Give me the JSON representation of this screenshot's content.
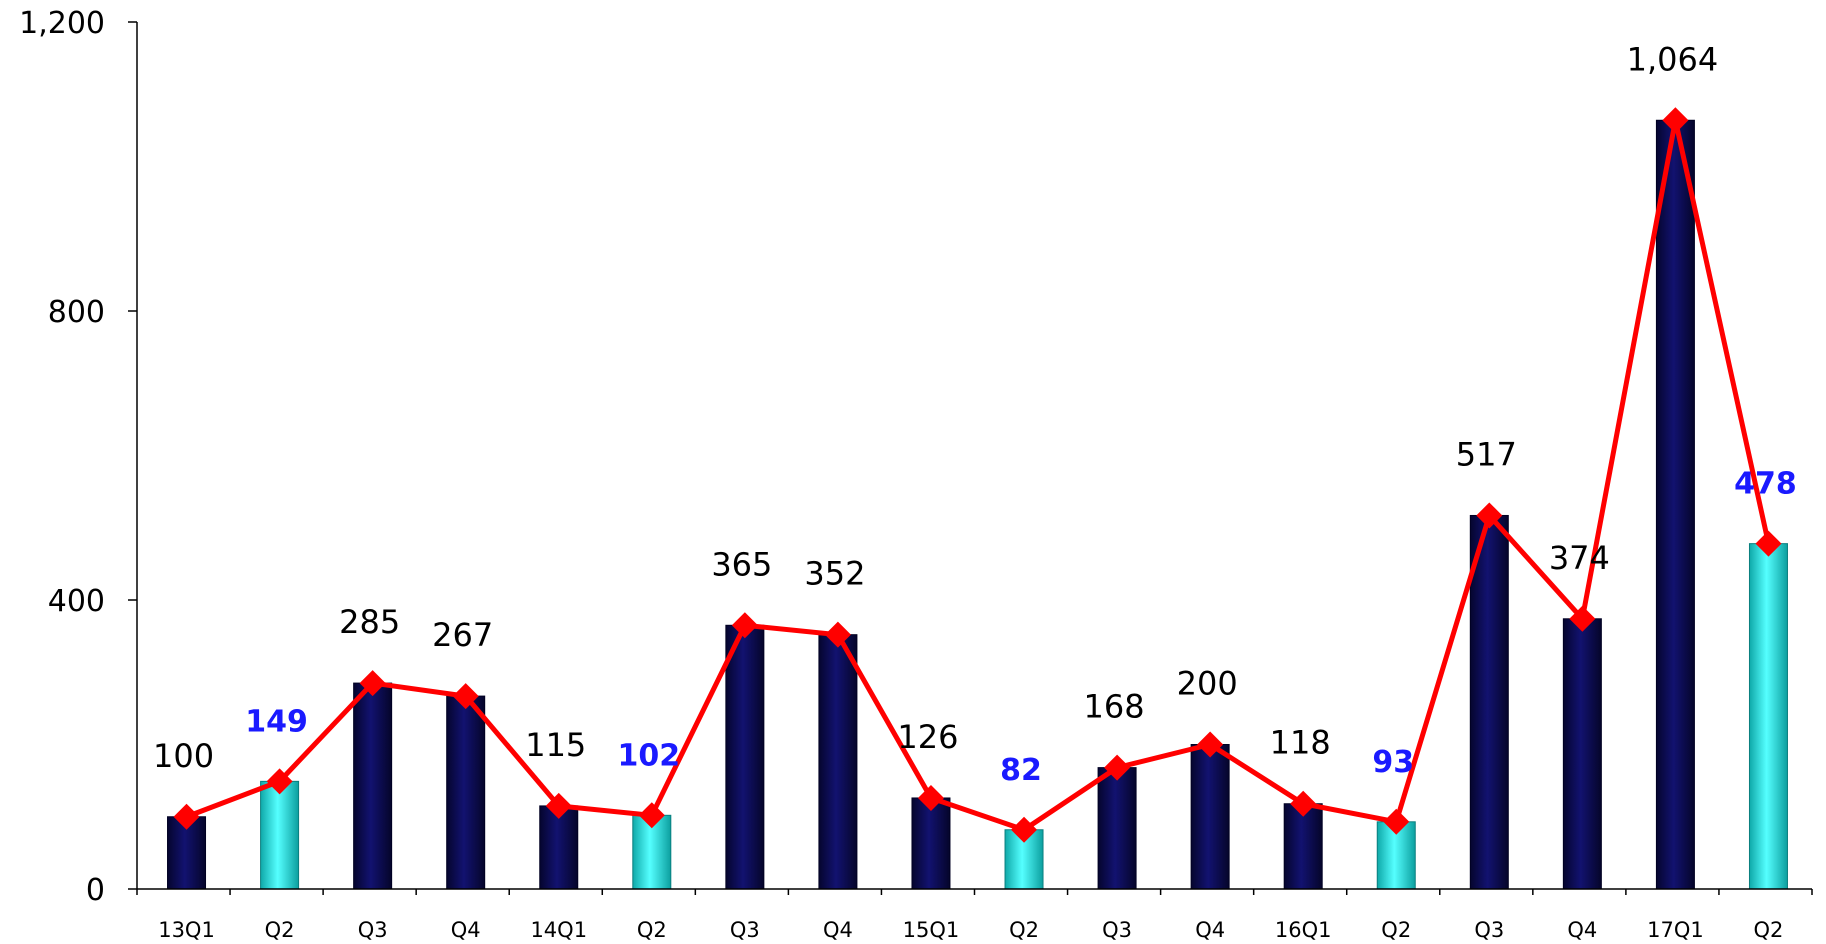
{
  "chart_data": {
    "type": "bar",
    "title": "",
    "xlabel": "",
    "ylabel": "",
    "ylim": [
      0,
      1200
    ],
    "yticks": [
      0,
      400,
      800,
      1200
    ],
    "ytick_labels": [
      "0",
      "400",
      "800",
      "1,200"
    ],
    "grid": false,
    "legend": "none",
    "categories": [
      "13Q1",
      "Q2",
      "Q3",
      "Q4",
      "14Q1",
      "Q2",
      "Q3",
      "Q4",
      "15Q1",
      "Q2",
      "Q3",
      "Q4",
      "16Q1",
      "Q2",
      "Q3",
      "Q4",
      "17Q1",
      "Q2"
    ],
    "series": [
      {
        "type": "bar",
        "values": [
          100,
          149,
          285,
          267,
          115,
          102,
          365,
          352,
          126,
          82,
          168,
          200,
          118,
          93,
          517,
          374,
          1064,
          478
        ],
        "highlight": [
          false,
          true,
          false,
          false,
          false,
          true,
          false,
          false,
          false,
          true,
          false,
          false,
          false,
          true,
          false,
          false,
          false,
          true
        ]
      },
      {
        "type": "line",
        "marker": "diamond",
        "values": [
          100,
          149,
          285,
          267,
          115,
          102,
          365,
          352,
          126,
          82,
          168,
          200,
          118,
          93,
          517,
          374,
          1064,
          478
        ]
      }
    ],
    "data_labels": [
      "100",
      "149",
      "285",
      "267",
      "115",
      "102",
      "365",
      "352",
      "126",
      "82",
      "168",
      "200",
      "118",
      "93",
      "517",
      "374",
      "1,064",
      "478"
    ],
    "colors": {
      "bar": "#0a0a50",
      "bar_highlight": "#22e0e0",
      "line": "#ff0000",
      "label": "#000000",
      "label_highlight": "#1a1aff",
      "axis": "#000000"
    }
  }
}
